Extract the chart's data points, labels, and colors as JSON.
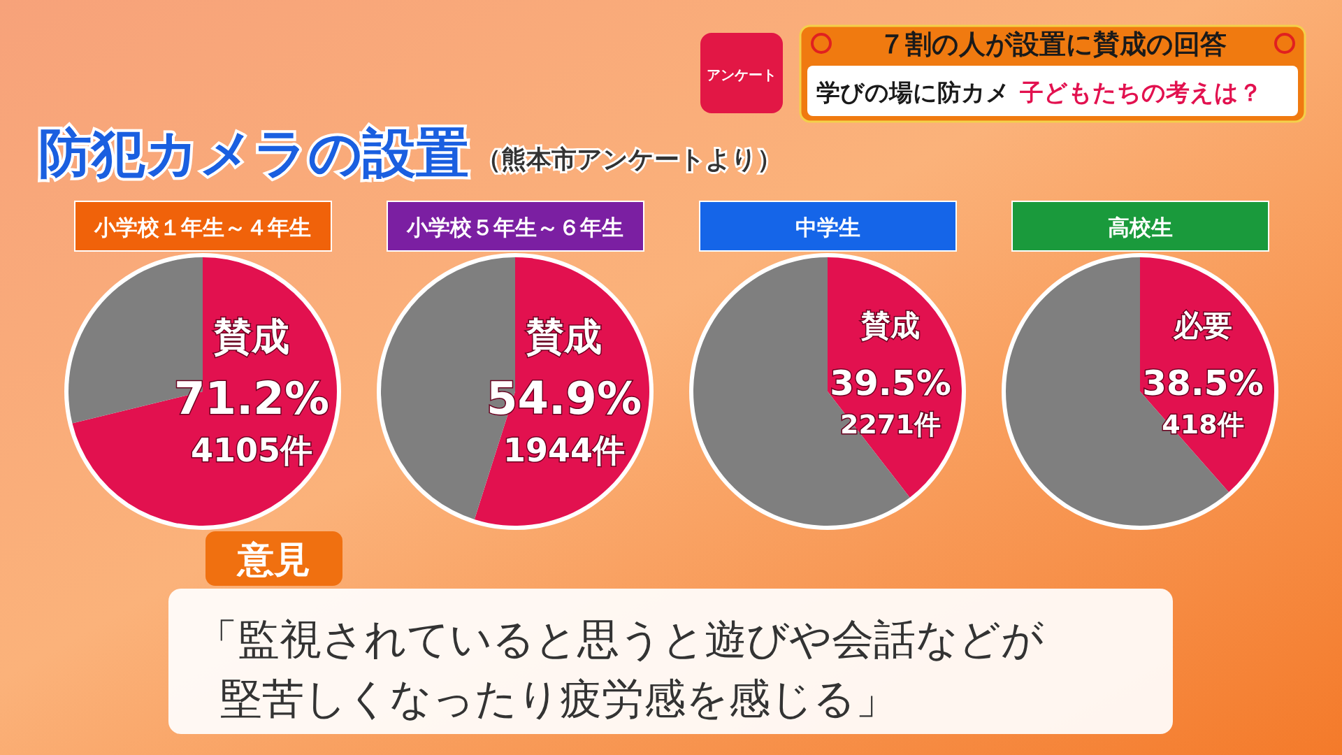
{
  "chart_data": [
    {
      "type": "other",
      "title": "防犯カメラの設置",
      "subtitle": "（熊本市アンケートより）",
      "annotations": [
        "アンケート",
        "７割の人が設置に賛成の回答",
        "学びの場に防カメ",
        "子どもたちの考えは？",
        "意見",
        "「監視されていると思うと遊びや会話などが",
        "堅苦しくなったり疲労感を感じる」"
      ]
    },
    {
      "type": "pie",
      "title": "小学校１年生～４年生",
      "categories": [
        "賛成",
        null
      ],
      "values": [
        71.2,
        28.8
      ],
      "colors": [
        "#e2114f",
        "#7f7f7f"
      ],
      "value_labels": [
        "71.2%",
        null
      ],
      "annotations": [
        "4105件"
      ]
    },
    {
      "type": "pie",
      "title": "小学校５年生～６年生",
      "categories": [
        "賛成",
        null
      ],
      "values": [
        54.9,
        45.1
      ],
      "colors": [
        "#e2114f",
        "#7f7f7f"
      ],
      "value_labels": [
        "54.9%",
        null
      ],
      "annotations": [
        "1944件"
      ]
    },
    {
      "type": "pie",
      "title": "中学生",
      "categories": [
        "賛成",
        null
      ],
      "values": [
        39.5,
        60.5
      ],
      "colors": [
        "#e2114f",
        "#7f7f7f"
      ],
      "value_labels": [
        "39.5%",
        null
      ],
      "annotations": [
        "2271件"
      ]
    },
    {
      "type": "pie",
      "title": "高校生",
      "categories": [
        "必要",
        null
      ],
      "values": [
        38.5,
        61.5
      ],
      "colors": [
        "#e2114f",
        "#7f7f7f"
      ],
      "value_labels": [
        "38.5%",
        null
      ],
      "annotations": [
        "418件"
      ]
    }
  ]
}
